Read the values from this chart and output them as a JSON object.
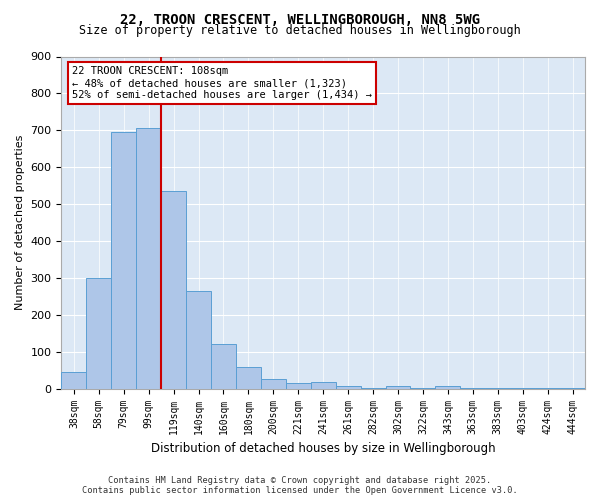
{
  "title_line1": "22, TROON CRESCENT, WELLINGBOROUGH, NN8 5WG",
  "title_line2": "Size of property relative to detached houses in Wellingborough",
  "xlabel": "Distribution of detached houses by size in Wellingborough",
  "ylabel": "Number of detached properties",
  "bar_values": [
    45,
    300,
    695,
    705,
    535,
    265,
    120,
    60,
    25,
    15,
    18,
    7,
    2,
    7,
    2,
    7,
    2,
    2,
    2,
    2,
    2
  ],
  "bin_labels": [
    "38sqm",
    "58sqm",
    "79sqm",
    "99sqm",
    "119sqm",
    "140sqm",
    "160sqm",
    "180sqm",
    "200sqm",
    "221sqm",
    "241sqm",
    "261sqm",
    "282sqm",
    "302sqm",
    "322sqm",
    "343sqm",
    "363sqm",
    "383sqm",
    "403sqm",
    "424sqm",
    "444sqm"
  ],
  "bar_color": "#aec6e8",
  "bar_edge_color": "#5a9fd4",
  "vline_x": 4,
  "vline_color": "#cc0000",
  "annotation_text": "22 TROON CRESCENT: 108sqm\n← 48% of detached houses are smaller (1,323)\n52% of semi-detached houses are larger (1,434) →",
  "annotation_box_color": "#cc0000",
  "ylim": [
    0,
    900
  ],
  "yticks": [
    0,
    100,
    200,
    300,
    400,
    500,
    600,
    700,
    800,
    900
  ],
  "bg_color": "#dce8f5",
  "footer": "Contains HM Land Registry data © Crown copyright and database right 2025.\nContains public sector information licensed under the Open Government Licence v3.0."
}
